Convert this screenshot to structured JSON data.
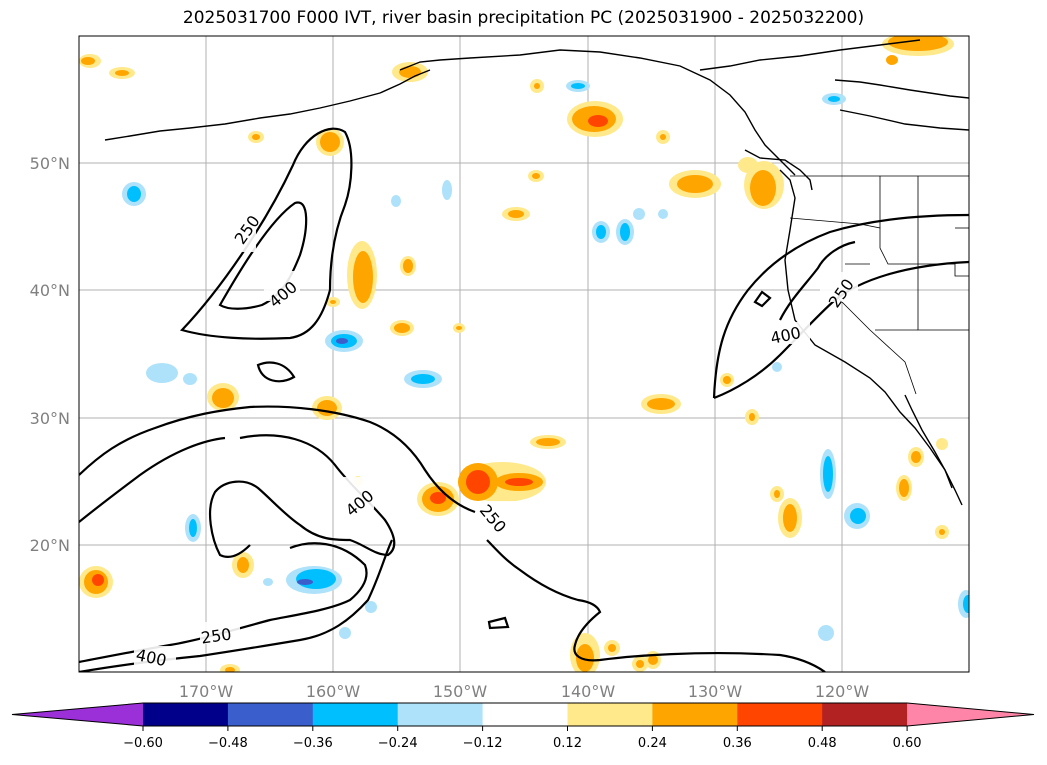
{
  "title": "2025031700 F000 IVT, river basin precipitation PC (2025031900 - 2025032200)",
  "map": {
    "lon_range": [
      -180,
      -110
    ],
    "lat_range": [
      10,
      60
    ],
    "lat_ticks": [
      "50°N",
      "40°N",
      "30°N",
      "20°N"
    ],
    "lon_ticks": [
      "170°W",
      "160°W",
      "150°W",
      "140°W",
      "130°W",
      "120°W"
    ],
    "contour_levels": [
      "250",
      "400"
    ],
    "contour_labels": [
      "250",
      "400",
      "400",
      "250",
      "250",
      "400",
      "250",
      "400"
    ]
  },
  "colorbar": {
    "ticks": [
      "−0.60",
      "−0.48",
      "−0.36",
      "−0.24",
      "−0.12",
      "0.12",
      "0.24",
      "0.36",
      "0.48",
      "0.60"
    ],
    "colors": [
      "#9b30d9",
      "#00008b",
      "#3a5fcd",
      "#00bfff",
      "#aee2fa",
      "#ffffff",
      "#ffe98a",
      "#ffa500",
      "#ff4500",
      "#b22222",
      "#ff85a8"
    ],
    "extend": "both"
  }
}
